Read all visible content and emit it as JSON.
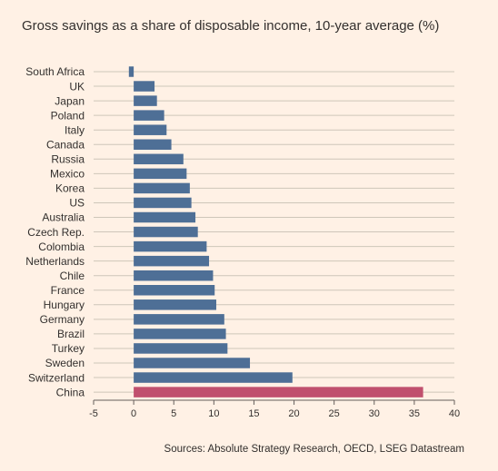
{
  "title": "Gross savings as a share of disposable income, 10-year average (%)",
  "source": "Sources: Absolute Strategy Research, OECD, LSEG Datastream",
  "colors": {
    "background": "#fff1e5",
    "bar": "#4e6f96",
    "highlight": "#c0506e",
    "gridline": "#cec6b9",
    "text": "#33302e"
  },
  "chart_data": {
    "type": "bar",
    "orientation": "horizontal",
    "title": "Gross savings as a share of disposable income, 10-year average (%)",
    "categories": [
      "South Africa",
      "UK",
      "Japan",
      "Poland",
      "Italy",
      "Canada",
      "Russia",
      "Mexico",
      "Korea",
      "US",
      "Australia",
      "Czech Rep.",
      "Colombia",
      "Netherlands",
      "Chile",
      "France",
      "Hungary",
      "Germany",
      "Brazil",
      "Turkey",
      "Sweden",
      "Switzerland",
      "China"
    ],
    "values": [
      -0.6,
      2.6,
      2.9,
      3.8,
      4.1,
      4.7,
      6.2,
      6.6,
      7.0,
      7.2,
      7.7,
      8.0,
      9.1,
      9.4,
      9.9,
      10.1,
      10.3,
      11.3,
      11.5,
      11.7,
      14.5,
      19.8,
      36.1
    ],
    "highlight": [
      "China"
    ],
    "xlim": [
      -5,
      40
    ],
    "xticks": [
      -5,
      0,
      5,
      10,
      15,
      20,
      25,
      30,
      35,
      40
    ],
    "xtick_labels": [
      "-5",
      "0",
      "5",
      "10",
      "15",
      "20",
      "25",
      "30",
      "35",
      "40"
    ],
    "grid": true,
    "legend": "none"
  }
}
